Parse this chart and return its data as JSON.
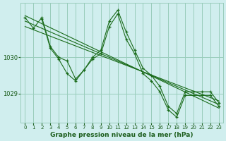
{
  "bg_color": "#d0eeee",
  "grid_color": "#99ccbb",
  "line_color": "#1a6b1a",
  "text_color": "#1a5c1a",
  "xlabel": "Graphe pression niveau de la mer (hPa)",
  "yticks": [
    1029,
    1030
  ],
  "xticks": [
    0,
    1,
    2,
    3,
    4,
    5,
    6,
    7,
    8,
    9,
    10,
    11,
    12,
    13,
    14,
    15,
    16,
    17,
    18,
    19,
    20,
    21,
    22,
    23
  ],
  "xlim": [
    -0.5,
    23.5
  ],
  "ylim": [
    1028.2,
    1031.5
  ],
  "series": {
    "main": {
      "x": [
        0,
        1,
        2,
        3,
        4,
        5,
        6,
        7,
        8,
        9,
        10,
        11,
        12,
        13,
        14,
        15,
        16,
        17,
        18,
        19,
        20,
        21,
        22,
        23
      ],
      "y": [
        1031.1,
        1030.8,
        1031.1,
        1030.3,
        1030.0,
        1029.9,
        1029.4,
        1029.65,
        1030.0,
        1030.2,
        1031.0,
        1031.3,
        1030.7,
        1030.2,
        1029.7,
        1029.5,
        1029.2,
        1028.65,
        1028.45,
        1029.05,
        1029.05,
        1029.05,
        1029.05,
        1028.75
      ]
    },
    "trend1": {
      "x": [
        0,
        23
      ],
      "y": [
        1031.15,
        1028.6
      ]
    },
    "trend2": {
      "x": [
        0,
        23
      ],
      "y": [
        1031.0,
        1028.7
      ]
    },
    "trend3": {
      "x": [
        0,
        23
      ],
      "y": [
        1030.85,
        1028.8
      ]
    },
    "sub": {
      "x": [
        2,
        3,
        4,
        5,
        6,
        7,
        8,
        9,
        10,
        11,
        12,
        13,
        14,
        15,
        16,
        17,
        18,
        19,
        20,
        21,
        22,
        23
      ],
      "y": [
        1031.05,
        1030.25,
        1029.95,
        1029.55,
        1029.35,
        1029.65,
        1029.95,
        1030.1,
        1030.85,
        1031.2,
        1030.5,
        1030.1,
        1029.55,
        1029.35,
        1029.05,
        1028.55,
        1028.35,
        1028.95,
        1028.95,
        1028.95,
        1028.95,
        1028.65
      ]
    }
  }
}
